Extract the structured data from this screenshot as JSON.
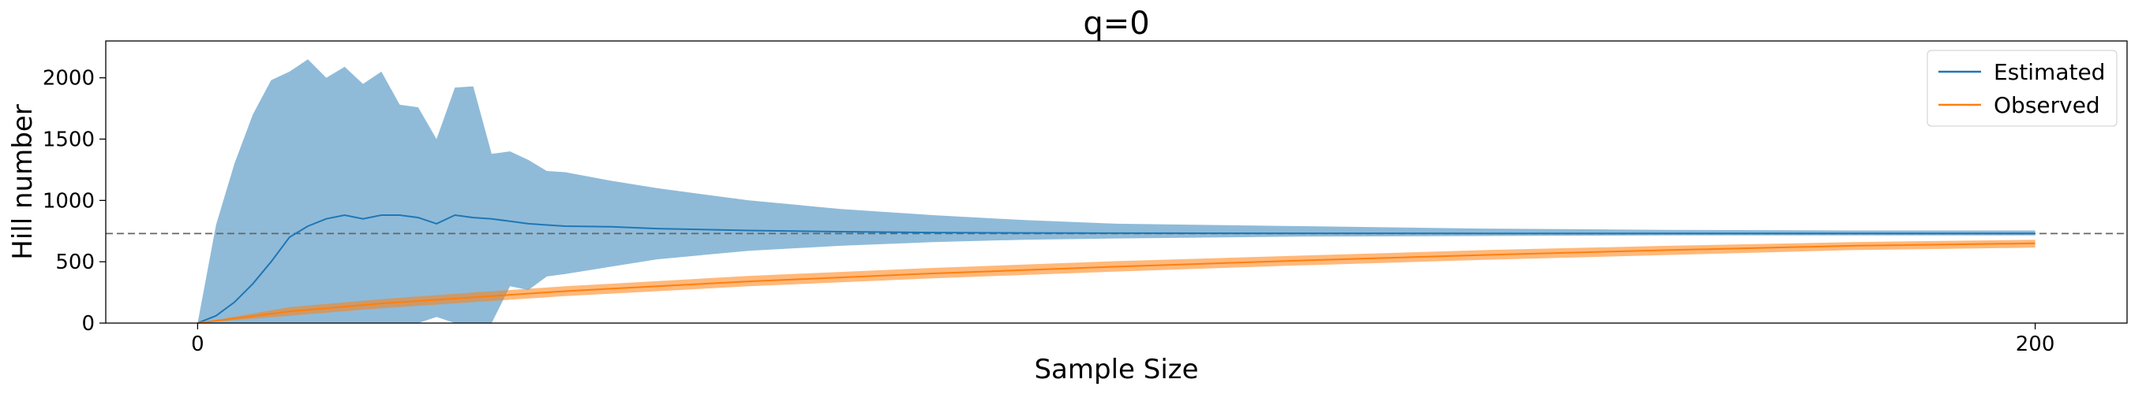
{
  "chart_data": {
    "type": "line",
    "title": "q=0",
    "xlabel": "Sample Size",
    "ylabel": "Hill number",
    "xlim": [
      -10,
      210
    ],
    "ylim": [
      0,
      2300
    ],
    "xticks": [
      0,
      200
    ],
    "yticks": [
      0,
      500,
      1000,
      1500,
      2000
    ],
    "grid": false,
    "legend": "top-right",
    "reference_line": {
      "y": 730,
      "style": "dashed",
      "color": "#666666"
    },
    "series": [
      {
        "name": "Estimated",
        "color": "#1f77b4",
        "x": [
          0,
          2,
          4,
          6,
          8,
          10,
          12,
          14,
          16,
          18,
          20,
          22,
          24,
          26,
          28,
          30,
          32,
          34,
          36,
          38,
          40,
          45,
          50,
          60,
          70,
          80,
          90,
          100,
          120,
          140,
          160,
          180,
          200
        ],
        "y": [
          0,
          60,
          170,
          320,
          500,
          700,
          790,
          850,
          880,
          850,
          880,
          880,
          860,
          810,
          880,
          860,
          850,
          830,
          810,
          800,
          790,
          785,
          770,
          755,
          745,
          738,
          735,
          733,
          732,
          731,
          731,
          731,
          731
        ],
        "upper": [
          0,
          800,
          1300,
          1700,
          1980,
          2050,
          2150,
          2000,
          2090,
          1950,
          2050,
          1780,
          1760,
          1500,
          1920,
          1930,
          1380,
          1400,
          1330,
          1240,
          1230,
          1160,
          1100,
          1000,
          930,
          880,
          840,
          810,
          790,
          770,
          760,
          755,
          755
        ],
        "lower": [
          0,
          0,
          0,
          0,
          0,
          0,
          0,
          0,
          0,
          0,
          0,
          0,
          0,
          50,
          0,
          0,
          0,
          300,
          270,
          380,
          400,
          460,
          520,
          590,
          630,
          660,
          680,
          690,
          705,
          710,
          715,
          715,
          715
        ]
      },
      {
        "name": "Observed",
        "color": "#ff7f0e",
        "x": [
          0,
          10,
          20,
          30,
          40,
          60,
          80,
          100,
          120,
          140,
          160,
          180,
          200
        ],
        "y": [
          0,
          95,
          160,
          210,
          260,
          340,
          405,
          460,
          510,
          555,
          595,
          630,
          650
        ],
        "upper": [
          0,
          130,
          195,
          250,
          300,
          385,
          450,
          505,
          550,
          595,
          630,
          660,
          680
        ],
        "lower": [
          0,
          60,
          120,
          170,
          220,
          300,
          365,
          420,
          470,
          515,
          555,
          595,
          615
        ]
      }
    ]
  }
}
